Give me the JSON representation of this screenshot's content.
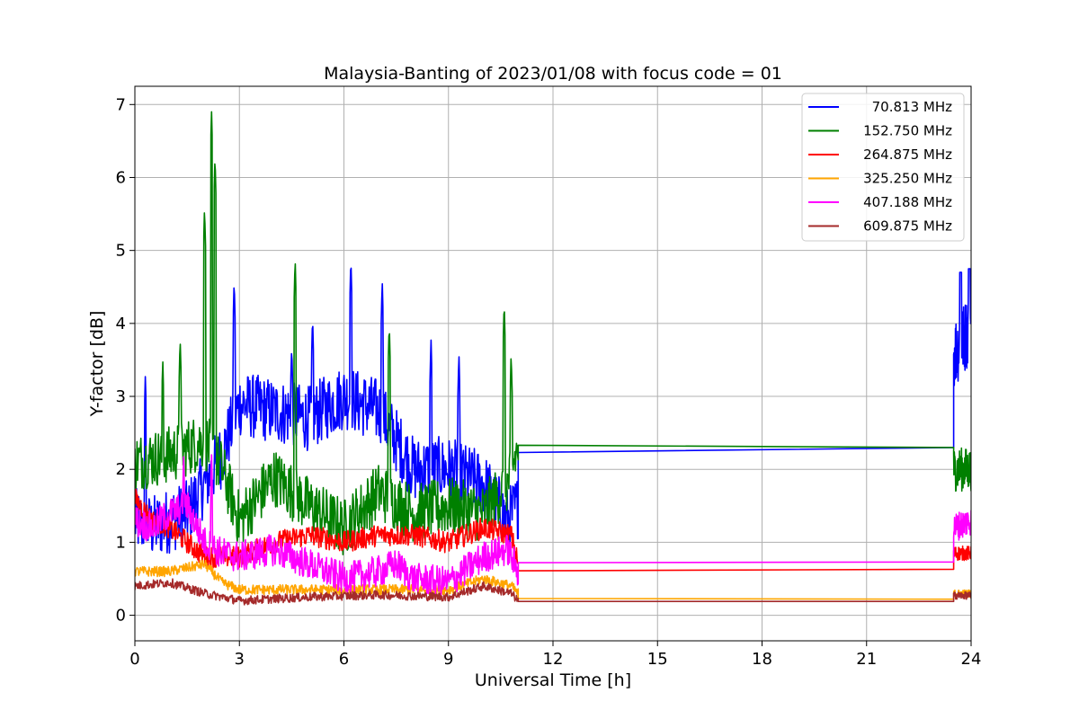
{
  "chart_data": {
    "type": "line",
    "title": "Malaysia-Banting of 2023/01/08 with focus code = 01",
    "xlabel": "Universal Time [h]",
    "ylabel": "Y-factor [dB]",
    "xlim": [
      0,
      24
    ],
    "ylim": [
      -0.35,
      7.25
    ],
    "xticks": [
      0,
      3,
      6,
      9,
      12,
      15,
      18,
      21,
      24
    ],
    "xtick_labels": [
      "0",
      "3",
      "6",
      "9",
      "12",
      "15",
      "18",
      "21",
      "24"
    ],
    "yticks": [
      0,
      1,
      2,
      3,
      4,
      5,
      6,
      7
    ],
    "ytick_labels": [
      "0",
      "1",
      "2",
      "3",
      "4",
      "5",
      "6",
      "7"
    ],
    "grid": true,
    "legend_position": "top-right",
    "series": [
      {
        "name": "70.813 MHz",
        "color": "#0000ff",
        "base": [
          [
            0,
            1.3
          ],
          [
            0.5,
            1.2
          ],
          [
            1.5,
            1.4
          ],
          [
            2.5,
            2.2
          ],
          [
            3.0,
            2.9
          ],
          [
            4.0,
            2.8
          ],
          [
            5.0,
            2.7
          ],
          [
            6.0,
            3.0
          ],
          [
            7.0,
            2.8
          ],
          [
            8.0,
            2.0
          ],
          [
            9.0,
            2.0
          ],
          [
            10.0,
            1.8
          ],
          [
            10.7,
            1.3
          ],
          [
            11.0,
            1.5
          ]
        ],
        "noise": 0.45,
        "flat": [
          [
            11.0,
            2.23
          ],
          [
            23.5,
            2.3
          ]
        ],
        "tail": [
          [
            23.5,
            3.6
          ],
          [
            23.8,
            3.8
          ],
          [
            24.0,
            4.0
          ]
        ],
        "tail_noise": 0.5,
        "spikes": [
          [
            0.3,
            3.3
          ],
          [
            2.85,
            4.6
          ],
          [
            4.5,
            3.7
          ],
          [
            5.1,
            4.1
          ],
          [
            6.2,
            4.9
          ],
          [
            7.1,
            4.6
          ],
          [
            8.5,
            3.8
          ],
          [
            9.3,
            3.6
          ],
          [
            23.7,
            4.7
          ],
          [
            23.95,
            4.75
          ]
        ]
      },
      {
        "name": "152.750 MHz",
        "color": "#008000",
        "base": [
          [
            0,
            2.1
          ],
          [
            1.0,
            2.2
          ],
          [
            2.0,
            2.4
          ],
          [
            2.5,
            2.0
          ],
          [
            3.0,
            1.3
          ],
          [
            4.0,
            1.9
          ],
          [
            5.0,
            1.5
          ],
          [
            6.0,
            1.2
          ],
          [
            7.0,
            1.7
          ],
          [
            8.0,
            1.4
          ],
          [
            9.0,
            1.5
          ],
          [
            10.0,
            1.4
          ],
          [
            10.7,
            1.8
          ],
          [
            11.0,
            2.3
          ]
        ],
        "noise": 0.4,
        "flat": [
          [
            11.0,
            2.33
          ],
          [
            23.5,
            2.3
          ]
        ],
        "tail": [
          [
            23.5,
            2.0
          ],
          [
            24.0,
            2.0
          ]
        ],
        "tail_noise": 0.3,
        "spikes": [
          [
            0.8,
            3.5
          ],
          [
            1.3,
            3.8
          ],
          [
            2.0,
            5.6
          ],
          [
            2.2,
            6.9
          ],
          [
            2.3,
            6.3
          ],
          [
            4.6,
            4.9
          ],
          [
            7.3,
            4.0
          ],
          [
            10.6,
            4.3
          ],
          [
            10.8,
            3.6
          ]
        ]
      },
      {
        "name": "264.875 MHz",
        "color": "#ff0000",
        "base": [
          [
            0,
            1.6
          ],
          [
            0.5,
            1.3
          ],
          [
            1.0,
            1.2
          ],
          [
            2.0,
            0.8
          ],
          [
            3.0,
            0.8
          ],
          [
            4.0,
            1.0
          ],
          [
            5.0,
            1.1
          ],
          [
            6.0,
            1.0
          ],
          [
            7.0,
            1.1
          ],
          [
            8.0,
            1.1
          ],
          [
            9.0,
            1.0
          ],
          [
            10.0,
            1.2
          ],
          [
            10.8,
            1.1
          ],
          [
            11.0,
            0.7
          ]
        ],
        "noise": 0.15,
        "flat": [
          [
            11.0,
            0.61
          ],
          [
            23.5,
            0.63
          ]
        ],
        "tail": [
          [
            23.5,
            0.85
          ],
          [
            24.0,
            0.85
          ]
        ],
        "tail_noise": 0.1,
        "spikes": []
      },
      {
        "name": "325.250 MHz",
        "color": "#ffa500",
        "base": [
          [
            0,
            0.6
          ],
          [
            1.0,
            0.6
          ],
          [
            2.0,
            0.7
          ],
          [
            2.5,
            0.45
          ],
          [
            3.0,
            0.35
          ],
          [
            5.0,
            0.35
          ],
          [
            7.0,
            0.35
          ],
          [
            9.0,
            0.35
          ],
          [
            10.0,
            0.5
          ],
          [
            10.8,
            0.4
          ],
          [
            11.0,
            0.3
          ]
        ],
        "noise": 0.07,
        "flat": [
          [
            11.0,
            0.23
          ],
          [
            23.5,
            0.22
          ]
        ],
        "tail": [
          [
            23.5,
            0.3
          ],
          [
            24.0,
            0.3
          ]
        ],
        "tail_noise": 0.05,
        "spikes": []
      },
      {
        "name": "407.188 MHz",
        "color": "#ff00ff",
        "base": [
          [
            0,
            1.3
          ],
          [
            0.5,
            1.2
          ],
          [
            1.0,
            1.4
          ],
          [
            1.5,
            1.5
          ],
          [
            2.0,
            1.0
          ],
          [
            2.5,
            0.85
          ],
          [
            3.0,
            0.8
          ],
          [
            4.0,
            0.9
          ],
          [
            5.0,
            0.7
          ],
          [
            6.0,
            0.5
          ],
          [
            7.0,
            0.6
          ],
          [
            7.5,
            0.7
          ],
          [
            8.0,
            0.5
          ],
          [
            9.0,
            0.45
          ],
          [
            10.0,
            0.8
          ],
          [
            10.7,
            0.9
          ],
          [
            11.0,
            0.6
          ]
        ],
        "noise": 0.22,
        "flat": [
          [
            11.0,
            0.72
          ],
          [
            23.5,
            0.73
          ]
        ],
        "tail": [
          [
            23.5,
            1.2
          ],
          [
            24.0,
            1.3
          ]
        ],
        "tail_noise": 0.2,
        "spikes": [
          [
            1.4,
            2.2
          ],
          [
            2.2,
            2.2
          ]
        ]
      },
      {
        "name": "609.875 MHz",
        "color": "#a52a2a",
        "base": [
          [
            0,
            0.4
          ],
          [
            1.0,
            0.45
          ],
          [
            2.0,
            0.3
          ],
          [
            3.0,
            0.2
          ],
          [
            5.0,
            0.25
          ],
          [
            7.0,
            0.28
          ],
          [
            9.0,
            0.25
          ],
          [
            10.0,
            0.4
          ],
          [
            10.8,
            0.3
          ],
          [
            11.0,
            0.2
          ]
        ],
        "noise": 0.06,
        "flat": [
          [
            11.0,
            0.19
          ],
          [
            23.5,
            0.19
          ]
        ],
        "tail": [
          [
            23.5,
            0.27
          ],
          [
            24.0,
            0.27
          ]
        ],
        "tail_noise": 0.05,
        "spikes": []
      }
    ]
  }
}
